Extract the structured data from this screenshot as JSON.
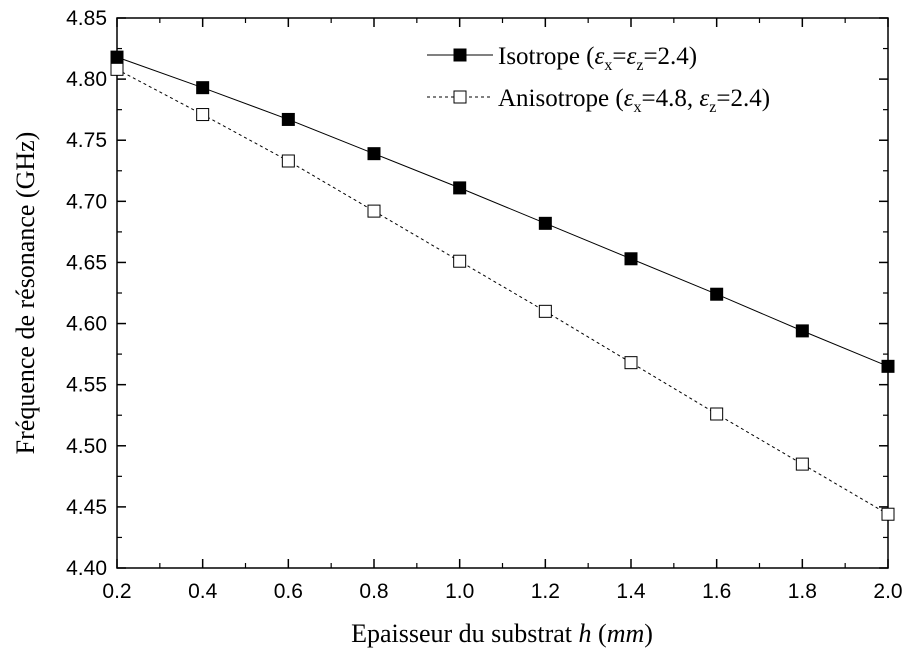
{
  "chart_data": {
    "type": "line",
    "title": "",
    "xlabel": "Epaisseur du substrat",
    "xlabel_var": "h",
    "xlabel_unit": "mm",
    "ylabel": "Fréquence de résonance (GHz)",
    "xlim": [
      0.2,
      2.0
    ],
    "ylim": [
      4.4,
      4.85
    ],
    "xticks": [
      "0.2",
      "0.4",
      "0.6",
      "0.8",
      "1.0",
      "1.2",
      "1.4",
      "1.6",
      "1.8",
      "2.0"
    ],
    "yticks": [
      "4.40",
      "4.45",
      "4.50",
      "4.55",
      "4.60",
      "4.65",
      "4.70",
      "4.75",
      "4.80",
      "4.85"
    ],
    "x": [
      0.2,
      0.4,
      0.6,
      0.8,
      1.0,
      1.2,
      1.4,
      1.6,
      1.8,
      2.0
    ],
    "grid": false,
    "legend_position": "top-right",
    "series": [
      {
        "name": "Isotrope",
        "legend_suffix": "=2.4)",
        "marker": "filled-square",
        "line": "solid",
        "color": "#000000",
        "values": [
          4.818,
          4.793,
          4.767,
          4.739,
          4.711,
          4.682,
          4.653,
          4.624,
          4.594,
          4.565
        ]
      },
      {
        "name": "Anisotrope",
        "legend_mid": "=4.8,",
        "legend_suffix": "=2.4)",
        "marker": "open-square",
        "line": "dashed",
        "color": "#000000",
        "values": [
          4.808,
          4.771,
          4.733,
          4.692,
          4.651,
          4.61,
          4.568,
          4.526,
          4.485,
          4.444
        ]
      }
    ]
  }
}
